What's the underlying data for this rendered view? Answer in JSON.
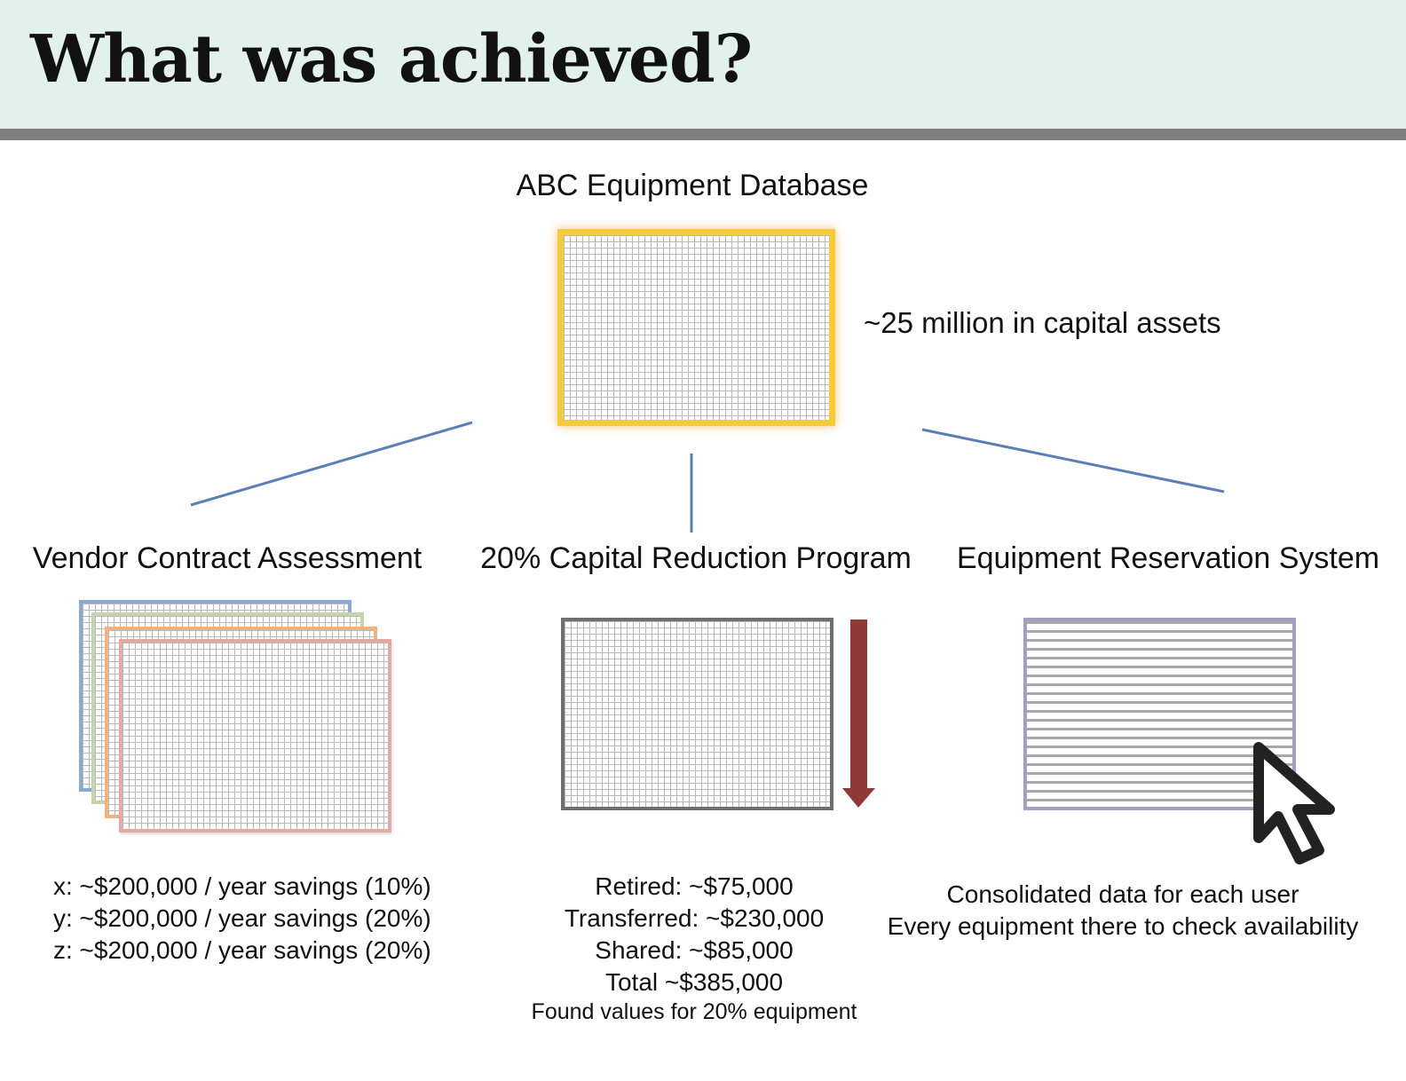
{
  "header": {
    "title": "What was achieved?"
  },
  "database": {
    "title": "ABC Equipment Database",
    "annotation": "~25 million in capital assets"
  },
  "branches": {
    "vendor": {
      "title": "Vendor Contract Assessment",
      "lines": [
        "x: ~$200,000 / year savings (10%)",
        "y: ~$200,000 / year savings (20%)",
        "z: ~$200,000 / year savings (20%)"
      ]
    },
    "reduction": {
      "title": "20% Capital Reduction Program",
      "lines": [
        "Retired: ~$75,000",
        "Transferred: ~$230,000",
        "Shared: ~$85,000",
        "Total ~$385,000"
      ],
      "note": "Found values for 20% equipment"
    },
    "reservation": {
      "title": "Equipment Reservation System",
      "lines": [
        "Consolidated data for each user",
        "Every equipment there to check availability"
      ]
    }
  },
  "colors": {
    "header_bg": "#e2f1ec",
    "header_rule": "#7f7f7f",
    "connector": "#5b7fb4",
    "database_border": "#f3cb3d",
    "reduction_arrow": "#8e3a36",
    "reservation_border": "#a89bc4",
    "stack_colors": [
      "#8aa9d8",
      "#c6d4ae",
      "#f2b27e",
      "#e2aaa5"
    ]
  },
  "icons": [
    "down-arrow-icon",
    "mouse-cursor-icon"
  ]
}
